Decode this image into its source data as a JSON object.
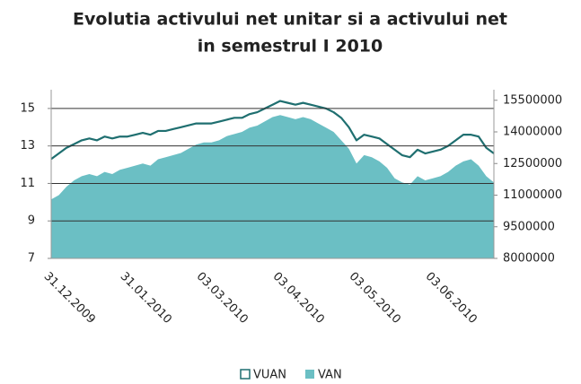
{
  "chart_data": {
    "type": "line-area",
    "title": [
      "Evolutia activului net unitar si a activului net",
      "in semestrul I 2010"
    ],
    "categories": [
      "31.12.2009",
      null,
      null,
      null,
      null,
      null,
      null,
      null,
      null,
      null,
      "31.01.2010",
      null,
      null,
      null,
      null,
      null,
      null,
      null,
      null,
      null,
      "03.03.2010",
      null,
      null,
      null,
      null,
      null,
      null,
      null,
      null,
      null,
      "03.04.2010",
      null,
      null,
      null,
      null,
      null,
      null,
      null,
      null,
      null,
      "03.05.2010",
      null,
      null,
      null,
      null,
      null,
      null,
      null,
      null,
      null,
      "03.06.2010",
      null,
      null,
      null,
      null,
      null,
      null,
      null,
      null
    ],
    "series": [
      {
        "name": "VUAN",
        "color": "#1f6f70",
        "values": [
          12.3,
          12.6,
          12.9,
          13.1,
          13.3,
          13.4,
          13.3,
          13.5,
          13.4,
          13.5,
          13.5,
          13.6,
          13.7,
          13.6,
          13.8,
          13.8,
          13.9,
          14.0,
          14.1,
          14.2,
          14.2,
          14.2,
          14.3,
          14.4,
          14.5,
          14.5,
          14.7,
          14.8,
          15.0,
          15.2,
          15.4,
          15.3,
          15.2,
          15.3,
          15.2,
          15.1,
          15.0,
          14.8,
          14.5,
          14.0,
          13.3,
          13.6,
          13.5,
          13.4,
          13.1,
          12.8,
          12.5,
          12.4,
          12.8,
          12.6,
          12.7,
          12.8,
          13.0,
          13.3,
          13.6,
          13.6,
          13.5,
          12.9,
          12.6
        ]
      },
      {
        "name": "VAN",
        "color": "#6bbfc4",
        "axis": "y2",
        "values": [
          10800000,
          11000000,
          11400000,
          11700000,
          11900000,
          12000000,
          11900000,
          12100000,
          12000000,
          12200000,
          12300000,
          12400000,
          12500000,
          12400000,
          12700000,
          12800000,
          12900000,
          13000000,
          13200000,
          13400000,
          13500000,
          13500000,
          13600000,
          13800000,
          13900000,
          14000000,
          14200000,
          14300000,
          14500000,
          14700000,
          14800000,
          14700000,
          14600000,
          14700000,
          14600000,
          14400000,
          14200000,
          14000000,
          13600000,
          13200000,
          12500000,
          12900000,
          12800000,
          12600000,
          12300000,
          11800000,
          11600000,
          11500000,
          11900000,
          11700000,
          11800000,
          11900000,
          12100000,
          12400000,
          12600000,
          12700000,
          12400000,
          11900000,
          11600000
        ]
      }
    ],
    "ylim": [
      7,
      16
    ],
    "yticks": [
      7,
      9,
      11,
      13,
      15
    ],
    "y2lim": [
      8000000,
      16000000
    ],
    "y2ticks": [
      8000000,
      9500000,
      11000000,
      12500000,
      14000000,
      15500000
    ],
    "grid": true,
    "legend": "bottom"
  }
}
